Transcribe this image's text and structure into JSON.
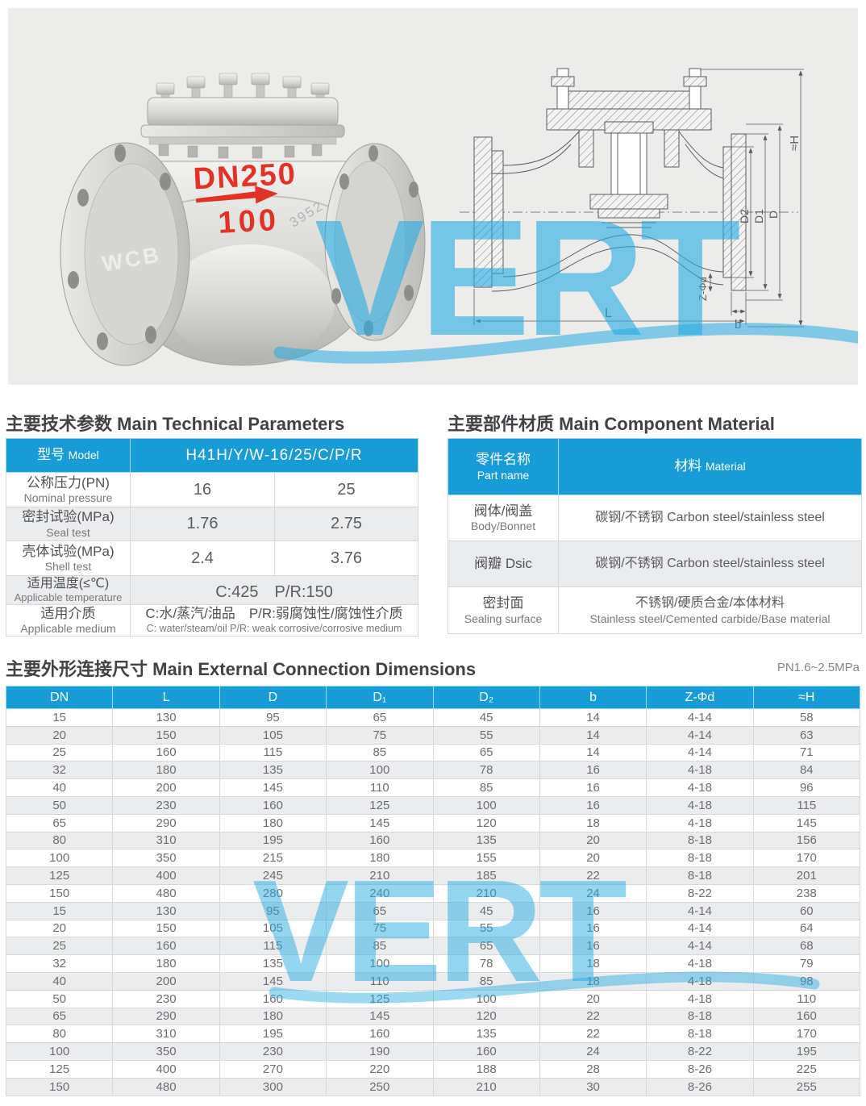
{
  "colors": {
    "accent_blue": "#179cd8",
    "watermark_blue": "#29abe2",
    "marking_red": "#e23127",
    "stripe_gray": "#ebeced",
    "hero_bg": "#ececeb"
  },
  "hero": {
    "watermark_text": "VERT",
    "photo": {
      "marking_dn": "DN250",
      "marking_pn": "100",
      "marking_material": "WCB",
      "marking_cast_no": "3952"
    },
    "drawing": {
      "labels": {
        "h": "≈H",
        "d2": "D2",
        "d1": "D1",
        "d": "D",
        "z_phi_d": "Z-Φd",
        "b": "b",
        "l": "L"
      }
    }
  },
  "tech_params": {
    "title_zh": "主要技术参数",
    "title_en": "Main Technical Parameters",
    "header": {
      "label_zh": "型号",
      "label_en": "Model",
      "value": "H41H/Y/W-16/25/C/P/R"
    },
    "rows": [
      {
        "zh": "公称压力(PN)",
        "en": "Nominal pressure",
        "v1": "16",
        "v2": "25"
      },
      {
        "zh": "密封试验(MPa)",
        "en": "Seal test",
        "v1": "1.76",
        "v2": "2.75"
      },
      {
        "zh": "壳体试验(MPa)",
        "en": "Shell test",
        "v1": "2.4",
        "v2": "3.76"
      },
      {
        "zh": "适用温度(≤℃)",
        "en": "Applicable temperature",
        "span": "C:425　P/R:150"
      },
      {
        "zh": "适用介质",
        "en": "Applicable medium",
        "span_zh": "C:水/蒸汽/油品　P/R:弱腐蚀性/腐蚀性介质",
        "span_en": "C: water/steam/oil P/R: weak corrosive/corrosive medium"
      }
    ]
  },
  "materials": {
    "title_zh": "主要部件材质",
    "title_en": "Main Component Material",
    "header": {
      "label_zh": "零件名称",
      "label_en": "Part name",
      "value_zh": "材料",
      "value_en": "Material"
    },
    "rows": [
      {
        "zh": "阀体/阀盖",
        "en": "Body/Bonnet",
        "mat": "碳钢/不锈钢 Carbon steel/stainless steel"
      },
      {
        "zh": "阀瓣 Dsic",
        "en": "",
        "mat": "碳钢/不锈钢 Carbon steel/stainless steel"
      },
      {
        "zh": "密封面",
        "en": "Sealing surface",
        "mat": "不锈钢/硬质合金/本体材料",
        "mat_en": "Stainless steel/Cemented carbide/Base material"
      }
    ]
  },
  "dimensions": {
    "title_zh": "主要外形连接尺寸",
    "title_en": "Main External Connection Dimensions",
    "pressure_note": "PN1.6~2.5MPa",
    "columns": [
      "DN",
      "L",
      "D",
      "D₁",
      "D₂",
      "b",
      "Z-Φd",
      "≈H"
    ],
    "rows": [
      [
        "15",
        "130",
        "95",
        "65",
        "45",
        "14",
        "4-14",
        "58"
      ],
      [
        "20",
        "150",
        "105",
        "75",
        "55",
        "14",
        "4-14",
        "63"
      ],
      [
        "25",
        "160",
        "115",
        "85",
        "65",
        "14",
        "4-14",
        "71"
      ],
      [
        "32",
        "180",
        "135",
        "100",
        "78",
        "16",
        "4-18",
        "84"
      ],
      [
        "40",
        "200",
        "145",
        "110",
        "85",
        "16",
        "4-18",
        "96"
      ],
      [
        "50",
        "230",
        "160",
        "125",
        "100",
        "16",
        "4-18",
        "115"
      ],
      [
        "65",
        "290",
        "180",
        "145",
        "120",
        "18",
        "4-18",
        "145"
      ],
      [
        "80",
        "310",
        "195",
        "160",
        "135",
        "20",
        "8-18",
        "156"
      ],
      [
        "100",
        "350",
        "215",
        "180",
        "155",
        "20",
        "8-18",
        "170"
      ],
      [
        "125",
        "400",
        "245",
        "210",
        "185",
        "22",
        "8-18",
        "201"
      ],
      [
        "150",
        "480",
        "280",
        "240",
        "210",
        "24",
        "8-22",
        "238"
      ],
      [
        "15",
        "130",
        "95",
        "65",
        "45",
        "16",
        "4-14",
        "60"
      ],
      [
        "20",
        "150",
        "105",
        "75",
        "55",
        "16",
        "4-14",
        "64"
      ],
      [
        "25",
        "160",
        "115",
        "85",
        "65",
        "16",
        "4-14",
        "68"
      ],
      [
        "32",
        "180",
        "135",
        "100",
        "78",
        "18",
        "4-18",
        "79"
      ],
      [
        "40",
        "200",
        "145",
        "110",
        "85",
        "18",
        "4-18",
        "98"
      ],
      [
        "50",
        "230",
        "160",
        "125",
        "100",
        "20",
        "4-18",
        "110"
      ],
      [
        "65",
        "290",
        "180",
        "145",
        "120",
        "22",
        "8-18",
        "160"
      ],
      [
        "80",
        "310",
        "195",
        "160",
        "135",
        "22",
        "8-18",
        "170"
      ],
      [
        "100",
        "350",
        "230",
        "190",
        "160",
        "24",
        "8-22",
        "195"
      ],
      [
        "125",
        "400",
        "270",
        "220",
        "188",
        "28",
        "8-26",
        "225"
      ],
      [
        "150",
        "480",
        "300",
        "250",
        "210",
        "30",
        "8-26",
        "255"
      ]
    ]
  }
}
